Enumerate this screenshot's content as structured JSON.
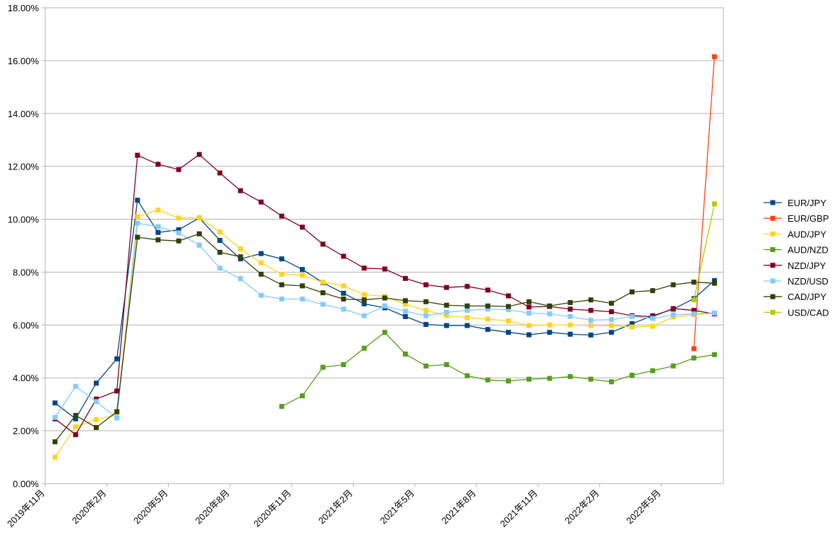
{
  "chart_data": {
    "type": "line",
    "title": "",
    "xlabel": "",
    "ylabel": "",
    "ylim": [
      0,
      18
    ],
    "y_ticks": [
      "0.00%",
      "2.00%",
      "4.00%",
      "6.00%",
      "8.00%",
      "10.00%",
      "12.00%",
      "14.00%",
      "16.00%",
      "18.00%"
    ],
    "x_ticks": [
      "2019年11月",
      "2020年2月",
      "2020年5月",
      "2020年8月",
      "2020年11月",
      "2021年2月",
      "2021年5月",
      "2021年8月",
      "2021年11月",
      "2022年2月",
      "2022年5月"
    ],
    "grid": true,
    "legend_position": "right",
    "categories": [
      "2019-12",
      "2020-01",
      "2020-02",
      "2020-03",
      "2020-04",
      "2020-05",
      "2020-06",
      "2020-07",
      "2020-08",
      "2020-09",
      "2020-10",
      "2020-11",
      "2020-12",
      "2021-01",
      "2021-02",
      "2021-03",
      "2021-04",
      "2021-05",
      "2021-06",
      "2021-07",
      "2021-08",
      "2021-09",
      "2021-10",
      "2021-11",
      "2021-12",
      "2022-01",
      "2022-02",
      "2022-03",
      "2022-04",
      "2022-05",
      "2022-06",
      "2022-07",
      "2022-08"
    ],
    "series": [
      {
        "name": "EUR/JPY",
        "color": "#004586",
        "values": [
          3.05,
          2.45,
          3.8,
          4.72,
          10.72,
          9.5,
          9.6,
          10.05,
          9.2,
          8.5,
          8.7,
          8.5,
          8.1,
          7.6,
          7.2,
          6.8,
          6.65,
          6.32,
          6.02,
          5.98,
          5.98,
          5.83,
          5.72,
          5.63,
          5.72,
          5.65,
          5.62,
          5.72,
          6.05,
          6.35,
          6.6,
          7.0,
          7.68
        ]
      },
      {
        "name": "EUR/GBP",
        "color": "#ff420e",
        "values": [
          null,
          null,
          null,
          null,
          null,
          null,
          null,
          null,
          null,
          null,
          null,
          null,
          null,
          null,
          null,
          null,
          null,
          null,
          null,
          null,
          null,
          null,
          null,
          null,
          null,
          null,
          null,
          null,
          null,
          null,
          null,
          5.1,
          16.15
        ]
      },
      {
        "name": "AUD/JPY",
        "color": "#ffd320",
        "values": [
          1.0,
          2.15,
          2.42,
          2.6,
          10.1,
          10.35,
          10.05,
          10.05,
          9.52,
          8.88,
          8.35,
          7.92,
          7.88,
          7.62,
          7.48,
          7.15,
          7.08,
          6.78,
          6.55,
          6.35,
          6.28,
          6.22,
          6.15,
          5.98,
          6.0,
          6.0,
          5.98,
          5.98,
          5.92,
          5.95,
          6.3,
          6.38,
          6.45
        ]
      },
      {
        "name": "AUD/NZD",
        "color": "#579d1c",
        "values": [
          null,
          null,
          null,
          null,
          null,
          null,
          null,
          null,
          null,
          null,
          null,
          2.92,
          3.32,
          4.4,
          4.5,
          5.12,
          5.72,
          4.9,
          4.45,
          4.5,
          4.08,
          3.92,
          3.88,
          3.95,
          3.98,
          4.05,
          3.95,
          3.85,
          4.1,
          4.27,
          4.45,
          4.75,
          4.88
        ]
      },
      {
        "name": "NZD/JPY",
        "color": "#7e0021",
        "values": [
          2.45,
          1.85,
          3.2,
          3.5,
          12.42,
          12.08,
          11.88,
          12.45,
          11.75,
          11.08,
          10.65,
          10.12,
          9.7,
          9.06,
          8.6,
          8.15,
          8.12,
          7.76,
          7.52,
          7.42,
          7.46,
          7.32,
          7.1,
          6.68,
          6.7,
          6.6,
          6.55,
          6.5,
          6.35,
          6.32,
          6.62,
          6.55,
          6.42
        ]
      },
      {
        "name": "NZD/USD",
        "color": "#83caff",
        "values": [
          2.5,
          3.68,
          3.1,
          2.48,
          9.85,
          9.72,
          9.48,
          9.02,
          8.15,
          7.75,
          7.12,
          6.98,
          6.98,
          6.78,
          6.6,
          6.35,
          6.72,
          6.52,
          6.35,
          6.48,
          6.55,
          6.6,
          6.58,
          6.45,
          6.42,
          6.32,
          6.18,
          6.2,
          6.32,
          6.25,
          6.38,
          6.42,
          6.45
        ]
      },
      {
        "name": "CAD/JPY",
        "color": "#314004",
        "values": [
          1.58,
          2.58,
          2.12,
          2.72,
          9.32,
          9.22,
          9.18,
          9.45,
          8.75,
          8.58,
          7.92,
          7.52,
          7.48,
          7.22,
          6.98,
          6.95,
          7.02,
          6.92,
          6.88,
          6.75,
          6.72,
          6.72,
          6.7,
          6.88,
          6.72,
          6.85,
          6.95,
          6.82,
          7.25,
          7.3,
          7.52,
          7.62,
          7.58
        ]
      },
      {
        "name": "USD/CAD",
        "color": "#aecf00",
        "values": [
          null,
          null,
          null,
          null,
          null,
          null,
          null,
          null,
          null,
          null,
          null,
          null,
          null,
          null,
          null,
          null,
          null,
          null,
          null,
          null,
          null,
          null,
          null,
          null,
          null,
          null,
          null,
          null,
          null,
          null,
          null,
          6.95,
          10.58
        ]
      }
    ]
  }
}
